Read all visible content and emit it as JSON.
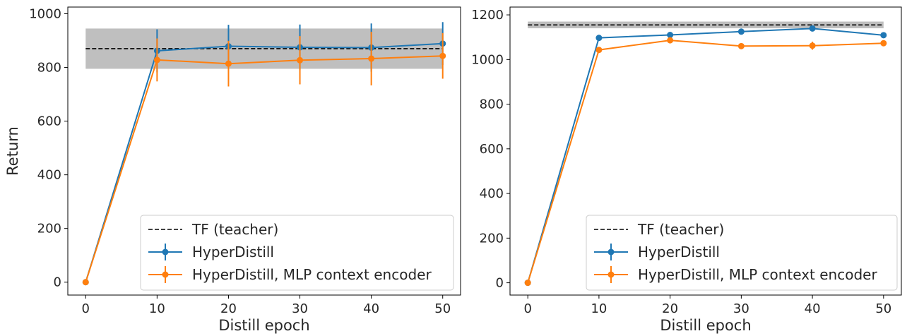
{
  "chart_data": [
    {
      "type": "line",
      "ylabel": "Return",
      "xlabel": "Distill epoch",
      "xlim": [
        -2.5,
        52.5
      ],
      "ylim": [
        -48,
        1025
      ],
      "xticks": [
        0,
        10,
        20,
        30,
        40,
        50
      ],
      "yticks": [
        0,
        200,
        400,
        600,
        800,
        1000
      ],
      "teacher": {
        "name": "TF (teacher)",
        "value": 870,
        "band": [
          795,
          945
        ],
        "x_range": [
          0,
          50
        ]
      },
      "series": [
        {
          "name": "HyperDistill",
          "color": "#1f77b4",
          "x": [
            0,
            10,
            20,
            30,
            40,
            50
          ],
          "y": [
            0,
            862,
            879,
            875,
            874,
            889
          ],
          "err": [
            0,
            80,
            80,
            85,
            90,
            80
          ]
        },
        {
          "name": "HyperDistill, MLP context encoder",
          "color": "#ff7f0e",
          "x": [
            0,
            10,
            20,
            30,
            40,
            50
          ],
          "y": [
            0,
            828,
            814,
            827,
            833,
            843
          ],
          "err": [
            0,
            80,
            85,
            90,
            100,
            85
          ]
        }
      ],
      "legend": "lower-right",
      "grid": false
    },
    {
      "type": "line",
      "ylabel": "",
      "xlabel": "Distill epoch",
      "xlim": [
        -2.5,
        52.5
      ],
      "ylim": [
        -55,
        1235
      ],
      "xticks": [
        0,
        10,
        20,
        30,
        40,
        50
      ],
      "yticks": [
        0,
        200,
        400,
        600,
        800,
        1000,
        1200
      ],
      "teacher": {
        "name": "TF (teacher)",
        "value": 1155,
        "band": [
          1140,
          1170
        ],
        "x_range": [
          0,
          50
        ]
      },
      "series": [
        {
          "name": "HyperDistill",
          "color": "#1f77b4",
          "x": [
            0,
            10,
            20,
            30,
            40,
            50
          ],
          "y": [
            0,
            1097,
            1110,
            1125,
            1139,
            1109
          ],
          "err": [
            0,
            8,
            8,
            8,
            8,
            6
          ]
        },
        {
          "name": "HyperDistill, MLP context encoder",
          "color": "#ff7f0e",
          "x": [
            0,
            10,
            20,
            30,
            40,
            50
          ],
          "y": [
            0,
            1043,
            1086,
            1060,
            1062,
            1073
          ],
          "err": [
            0,
            8,
            12,
            8,
            18,
            8
          ]
        }
      ],
      "legend": "lower-right",
      "grid": false
    }
  ]
}
